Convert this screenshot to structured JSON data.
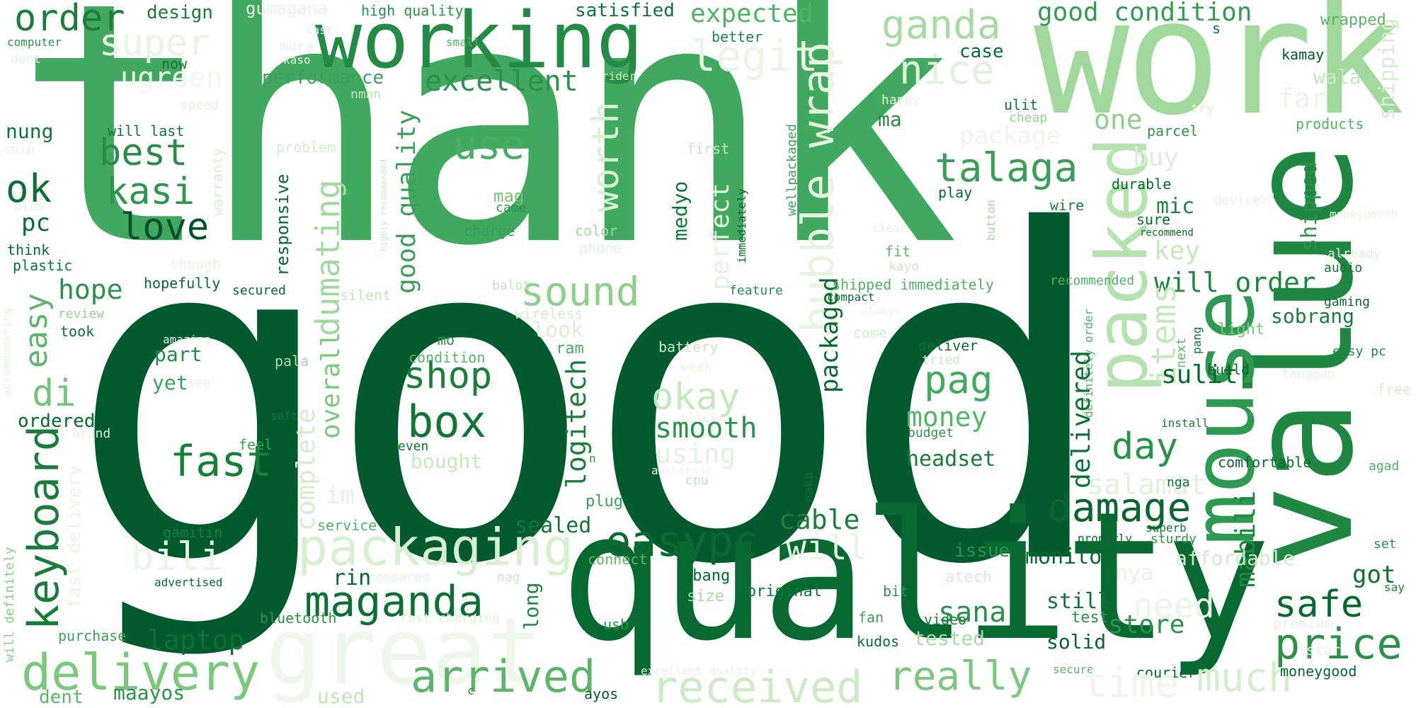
{
  "words": [
    {
      "text": "good",
      "color": "#005a2d"
    },
    {
      "text": "thank",
      "color": "#41a95f"
    },
    {
      "text": "quality",
      "color": "#076830"
    },
    {
      "text": "work",
      "color": "#a0d99b"
    },
    {
      "text": "value",
      "color": "#1f8742"
    },
    {
      "text": "mouse",
      "color": "#2e9950"
    },
    {
      "text": "working",
      "color": "#238b45"
    },
    {
      "text": "packed",
      "color": "#b6e2b0"
    },
    {
      "text": "great",
      "color": "#eef8ea"
    },
    {
      "text": "packaging",
      "color": "#d6f0d0"
    },
    {
      "text": "delivery",
      "color": "#7bc87c"
    },
    {
      "text": "bubble wrap",
      "color": "#e6f5e1"
    },
    {
      "text": "maganda",
      "color": "#0c6f33"
    },
    {
      "text": "received",
      "color": "#cdebc6"
    },
    {
      "text": "keyboard",
      "color": "#1b7b3a"
    },
    {
      "text": "easypc",
      "color": "#0a6b31"
    },
    {
      "text": "arrived",
      "color": "#5cb56a"
    },
    {
      "text": "damage",
      "color": "#0a6530"
    },
    {
      "text": "talaga",
      "color": "#3a9e57"
    },
    {
      "text": "really",
      "color": "#7cc77d"
    },
    {
      "text": "box",
      "color": "#127536"
    },
    {
      "text": "price",
      "color": "#2b9149"
    },
    {
      "text": "fast",
      "color": "#168039"
    },
    {
      "text": "shop",
      "color": "#1c7e3c"
    },
    {
      "text": "sound",
      "color": "#8ed08b"
    },
    {
      "text": "okay",
      "color": "#c5e8bf"
    },
    {
      "text": "use",
      "color": "#49ae62"
    },
    {
      "text": "best",
      "color": "#2c8b47"
    },
    {
      "text": "kasi",
      "color": "#2d954d"
    },
    {
      "text": "love",
      "color": "#00502a"
    },
    {
      "text": "ok",
      "color": "#0e6e34"
    },
    {
      "text": "ganda",
      "color": "#a8dba3"
    },
    {
      "text": "nice",
      "color": "#e1f3dc"
    },
    {
      "text": "super",
      "color": "#e8f6e3"
    },
    {
      "text": "legit",
      "color": "#eaf7e6"
    },
    {
      "text": "worth",
      "color": "#daf0d4"
    },
    {
      "text": "dumating",
      "color": "#a3d99e"
    },
    {
      "text": "good quality",
      "color": "#3c9e59"
    },
    {
      "text": "good condition",
      "color": "#339c52"
    },
    {
      "text": "expected",
      "color": "#50b265"
    },
    {
      "text": "excellent",
      "color": "#2a924a"
    },
    {
      "text": "order",
      "color": "#1d7e3c"
    },
    {
      "text": "design",
      "color": "#197a3a"
    },
    {
      "text": "gumagana",
      "color": "#e6f5e1"
    },
    {
      "text": "high quality",
      "color": "#2c9049"
    },
    {
      "text": "satisfied",
      "color": "#0f7536"
    },
    {
      "text": "shipping",
      "color": "#d4eece"
    },
    {
      "text": "wrapped",
      "color": "#58b568"
    },
    {
      "text": "computer",
      "color": "#2a924a"
    },
    {
      "text": "dont",
      "color": "#e4f5df"
    },
    {
      "text": "ugreen",
      "color": "#eff9ec"
    },
    {
      "text": "now",
      "color": "#0f7536"
    },
    {
      "text": "small",
      "color": "#4fb264"
    },
    {
      "text": "case",
      "color": "#006d2c"
    },
    {
      "text": "better",
      "color": "#1f8742"
    },
    {
      "text": "performance",
      "color": "#3da05b"
    },
    {
      "text": "nman",
      "color": "#c1e6ba"
    },
    {
      "text": "rider",
      "color": "#c0e6b9"
    },
    {
      "text": "wala",
      "color": "#c2e7bb"
    },
    {
      "text": "kamay",
      "color": "#00592d"
    },
    {
      "text": "speed",
      "color": "#e2f4dd"
    },
    {
      "text": "will last",
      "color": "#0f7536"
    },
    {
      "text": "nung",
      "color": "#127536"
    },
    {
      "text": "ship",
      "color": "#e8f6e3"
    },
    {
      "text": "problem",
      "color": "#d3eecd"
    },
    {
      "text": "warranty",
      "color": "#d7efd1"
    },
    {
      "text": "pc",
      "color": "#0a6b31"
    },
    {
      "text": "plus",
      "color": "#e6f5e1"
    },
    {
      "text": "think",
      "color": "#006d2c"
    },
    {
      "text": "plastic",
      "color": "#0f7536"
    },
    {
      "text": "though",
      "color": "#e5f5e0"
    },
    {
      "text": "hope",
      "color": "#2a924a"
    },
    {
      "text": "easy",
      "color": "#5cb56a"
    },
    {
      "text": "hopefully",
      "color": "#076830"
    },
    {
      "text": "secured",
      "color": "#0a6530"
    },
    {
      "text": "responsive",
      "color": "#076830"
    },
    {
      "text": "silent",
      "color": "#c6e8bf"
    },
    {
      "text": "review",
      "color": "#97d494"
    },
    {
      "text": "took",
      "color": "#0c6f33"
    },
    {
      "text": "amazing",
      "color": "#e4f5df"
    },
    {
      "text": "part",
      "color": "#238b45"
    },
    {
      "text": "pala",
      "color": "#a8dba3"
    },
    {
      "text": "see",
      "color": "#e6f5e1"
    },
    {
      "text": "yet",
      "color": "#3da05b"
    },
    {
      "text": "di",
      "color": "#73c476"
    },
    {
      "text": "ordered",
      "color": "#076830"
    },
    {
      "text": "brand",
      "color": "#e1f3dc"
    },
    {
      "text": "fast delivery",
      "color": "#e9f7e5"
    },
    {
      "text": "soft",
      "color": "#0f7536"
    },
    {
      "text": "feel",
      "color": "#37a055"
    },
    {
      "text": "gamitin",
      "color": "#1b7b3a"
    },
    {
      "text": "advertised",
      "color": "#0a6b31"
    },
    {
      "text": "bili",
      "color": "#eaf7e6"
    },
    {
      "text": "purchase",
      "color": "#3da05b"
    },
    {
      "text": "will definitely",
      "color": "#8ace88"
    },
    {
      "text": "dent",
      "color": "#5cb56a"
    },
    {
      "text": "laptop",
      "color": "#0c6f33"
    },
    {
      "text": "maayos",
      "color": "#2a924a"
    },
    {
      "text": "bluetooth",
      "color": "#2a924a"
    },
    {
      "text": "rin",
      "color": "#0a6530"
    },
    {
      "text": "service",
      "color": "#4fb264"
    },
    {
      "text": "compared",
      "color": "#e6f5e1"
    },
    {
      "text": "used",
      "color": "#c0e6b9"
    },
    {
      "text": "nag",
      "color": "#cbeac4"
    },
    {
      "text": "fast charging",
      "color": "#e0f3db"
    },
    {
      "text": "long",
      "color": "#1f8742"
    },
    {
      "text": "complete",
      "color": "#d3eecd"
    },
    {
      "text": "overall",
      "color": "#7bc87c"
    },
    {
      "text": "im",
      "color": "#e3f4de"
    },
    {
      "text": "sealed",
      "color": "#127536"
    },
    {
      "text": "connect",
      "color": "#5cb56a"
    },
    {
      "text": "plug",
      "color": "#3da05b"
    },
    {
      "text": "usb",
      "color": "#2a924a"
    },
    {
      "text": "ibang",
      "color": "#006d2c"
    },
    {
      "text": "size",
      "color": "#a8dba3"
    },
    {
      "text": "original",
      "color": "#0f7536"
    },
    {
      "text": "ayos",
      "color": "#005a2d"
    },
    {
      "text": "logitech",
      "color": "#1d7e3c"
    },
    {
      "text": "smooth",
      "color": "#2a924a"
    },
    {
      "text": "using",
      "color": "#e1f3dc"
    },
    {
      "text": "bought",
      "color": "#c6e8bf"
    },
    {
      "text": "authentic",
      "color": "#edf8ea"
    },
    {
      "text": "cpu",
      "color": "#c1e6ba"
    },
    {
      "text": "even",
      "color": "#127536"
    },
    {
      "text": "condition",
      "color": "#55b567"
    },
    {
      "text": "mo",
      "color": "#2a924a"
    },
    {
      "text": "battery",
      "color": "#c7e9c0"
    },
    {
      "text": "week",
      "color": "#e5f5e0"
    },
    {
      "text": "click",
      "color": "#e6f5e1"
    },
    {
      "text": "look",
      "color": "#daf0d4"
    },
    {
      "text": "ram",
      "color": "#49ae62"
    },
    {
      "text": "wireless",
      "color": "#d3eecd"
    },
    {
      "text": "balot",
      "color": "#c1e6ba"
    },
    {
      "text": "mag",
      "color": "#73c476"
    },
    {
      "text": "came",
      "color": "#2a924a"
    },
    {
      "text": "charge",
      "color": "#37a055"
    },
    {
      "text": "color",
      "color": "#a3d99e"
    },
    {
      "text": "phone",
      "color": "#e3f4de"
    },
    {
      "text": "medyo",
      "color": "#0f7536"
    },
    {
      "text": "perfect",
      "color": "#e6f5e1"
    },
    {
      "text": "first",
      "color": "#c6e8bf"
    },
    {
      "text": "immediately",
      "color": "#0a6530"
    },
    {
      "text": "feature",
      "color": "#2a924a"
    },
    {
      "text": "wellpackaged",
      "color": "#3da05b"
    },
    {
      "text": "highly recommended",
      "color": "#cbeac4"
    },
    {
      "text": "packaged",
      "color": "#076830"
    },
    {
      "text": "naka",
      "color": "#0c6f33"
    },
    {
      "text": "pag",
      "color": "#41ab5d"
    },
    {
      "text": "money",
      "color": "#55b567"
    },
    {
      "text": "headset",
      "color": "#1b7b3a"
    },
    {
      "text": "cable",
      "color": "#1d7e3c"
    },
    {
      "text": "sana",
      "color": "#2a924a"
    },
    {
      "text": "will",
      "color": "#e6f5e1"
    },
    {
      "text": "shipped immediately",
      "color": "#4fb264"
    },
    {
      "text": "compact",
      "color": "#0a6b31"
    },
    {
      "text": "come",
      "color": "#d3eecd"
    },
    {
      "text": "fit",
      "color": "#5cb56a"
    },
    {
      "text": "kayo",
      "color": "#cbeac4"
    },
    {
      "text": "play",
      "color": "#076830"
    },
    {
      "text": "button",
      "color": "#a3d99e"
    },
    {
      "text": "clear",
      "color": "#e3f4de"
    },
    {
      "text": "always",
      "color": "#e9f7e5"
    },
    {
      "text": "deliver",
      "color": "#0c6f33"
    },
    {
      "text": "tried",
      "color": "#cbeac4"
    },
    {
      "text": "budget",
      "color": "#2a924a"
    },
    {
      "text": "bit",
      "color": "#2a924a"
    },
    {
      "text": "fan",
      "color": "#3da05b"
    },
    {
      "text": "kudos",
      "color": "#0c6f33"
    },
    {
      "text": "tested",
      "color": "#a8dba3"
    },
    {
      "text": "video",
      "color": "#1b7b3a"
    },
    {
      "text": "atech",
      "color": "#d7efd1"
    },
    {
      "text": "issue",
      "color": "#2a924a"
    },
    {
      "text": "monitor",
      "color": "#076830"
    },
    {
      "text": "still",
      "color": "#0f7536"
    },
    {
      "text": "solid",
      "color": "#0a6530"
    },
    {
      "text": "store",
      "color": "#2a924a"
    },
    {
      "text": "excellent quality",
      "color": "#e6f5e1"
    },
    {
      "text": "secure",
      "color": "#5cb56a"
    },
    {
      "text": "courier",
      "color": "#076830"
    },
    {
      "text": "one",
      "color": "#8ed08b"
    },
    {
      "text": "package",
      "color": "#edf8ea"
    },
    {
      "text": "buy",
      "color": "#daf0d4"
    },
    {
      "text": "ma",
      "color": "#238b45"
    },
    {
      "text": "ulit",
      "color": "#0f7536"
    },
    {
      "text": "cheap",
      "color": "#97d494"
    },
    {
      "text": "happy",
      "color": "#e6f5e1"
    },
    {
      "text": "far",
      "color": "#eaf7e6"
    },
    {
      "text": "try",
      "color": "#daf0d4"
    },
    {
      "text": "parcel",
      "color": "#2a924a"
    },
    {
      "text": "products",
      "color": "#4fb264"
    },
    {
      "text": "key",
      "color": "#c6e8bf"
    },
    {
      "text": "mic",
      "color": "#1f8742"
    },
    {
      "text": "wire",
      "color": "#1b7b3a"
    },
    {
      "text": "durable",
      "color": "#076830"
    },
    {
      "text": "sure",
      "color": "#006d2c"
    },
    {
      "text": "u",
      "color": "#e5f5e0"
    },
    {
      "text": "device",
      "color": "#e5f5e0"
    },
    {
      "text": "ssd",
      "color": "#edf8ea"
    },
    {
      "text": "recommend",
      "color": "#076830"
    },
    {
      "text": "moneyworth",
      "color": "#e6f5e1"
    },
    {
      "text": "already",
      "color": "#e1f3dc"
    },
    {
      "text": "audio",
      "color": "#0f7536"
    },
    {
      "text": "recommended",
      "color": "#4fb264"
    },
    {
      "text": "will order",
      "color": "#1f8742"
    },
    {
      "text": "gaming",
      "color": "#0a6b31"
    },
    {
      "text": "shipped",
      "color": "#2a924a"
    },
    {
      "text": "sobrang",
      "color": "#1b7b3a"
    },
    {
      "text": "light",
      "color": "#7bc87c"
    },
    {
      "text": "items",
      "color": "#c7e9c0"
    },
    {
      "text": "next",
      "color": "#5cb56a"
    },
    {
      "text": "pang",
      "color": "#0f7536"
    },
    {
      "text": "easy pc",
      "color": "#1f8742"
    },
    {
      "text": "build",
      "color": "#006d2c"
    },
    {
      "text": "sulit",
      "color": "#076830"
    },
    {
      "text": "day",
      "color": "#2a924a"
    },
    {
      "text": "definitely order",
      "color": "#4fb264"
    },
    {
      "text": "install",
      "color": "#1b7b3a"
    },
    {
      "text": "free",
      "color": "#d7efd1"
    },
    {
      "text": "delivered",
      "color": "#0c6f33"
    },
    {
      "text": "salamat",
      "color": "#e1f3dc"
    },
    {
      "text": "comfortable",
      "color": "#076830"
    },
    {
      "text": "agad",
      "color": "#4fb264"
    },
    {
      "text": "mabili",
      "color": "#1f8742"
    },
    {
      "text": "nga",
      "color": "#0f7536"
    },
    {
      "text": "superb",
      "color": "#127536"
    },
    {
      "text": "properly",
      "color": "#0a6b31"
    },
    {
      "text": "sturdy",
      "color": "#2a924a"
    },
    {
      "text": "affordable",
      "color": "#d3eecd"
    },
    {
      "text": "nya",
      "color": "#e6f5e1"
    },
    {
      "text": "safe",
      "color": "#076830"
    },
    {
      "text": "got",
      "color": "#0c6f33"
    },
    {
      "text": "set",
      "color": "#2a924a"
    },
    {
      "text": "say",
      "color": "#1f8742"
    },
    {
      "text": "need",
      "color": "#eaf7e6"
    },
    {
      "text": "test",
      "color": "#2a924a"
    },
    {
      "text": "premium",
      "color": "#e6f5e1"
    },
    {
      "text": "time",
      "color": "#edf8ea"
    },
    {
      "text": "much",
      "color": "#d3eecd"
    },
    {
      "text": "star",
      "color": "#e6f5e1"
    },
    {
      "text": "moneygood",
      "color": "#076830"
    },
    {
      "text": "mura",
      "color": "#e6f5e1"
    },
    {
      "text": "kaso",
      "color": "#e6f5e1"
    },
    {
      "text": "last",
      "color": "#e5f5e0"
    },
    {
      "text": "s",
      "color": "#0f7536"
    },
    {
      "text": "accommodating",
      "color": "#e6f5e1"
    },
    {
      "text": "tanggap",
      "color": "#e6f5e1"
    },
    {
      "text": "n",
      "color": "#2a924a"
    },
    {
      "text": "c",
      "color": "#1b7b3a"
    }
  ]
}
